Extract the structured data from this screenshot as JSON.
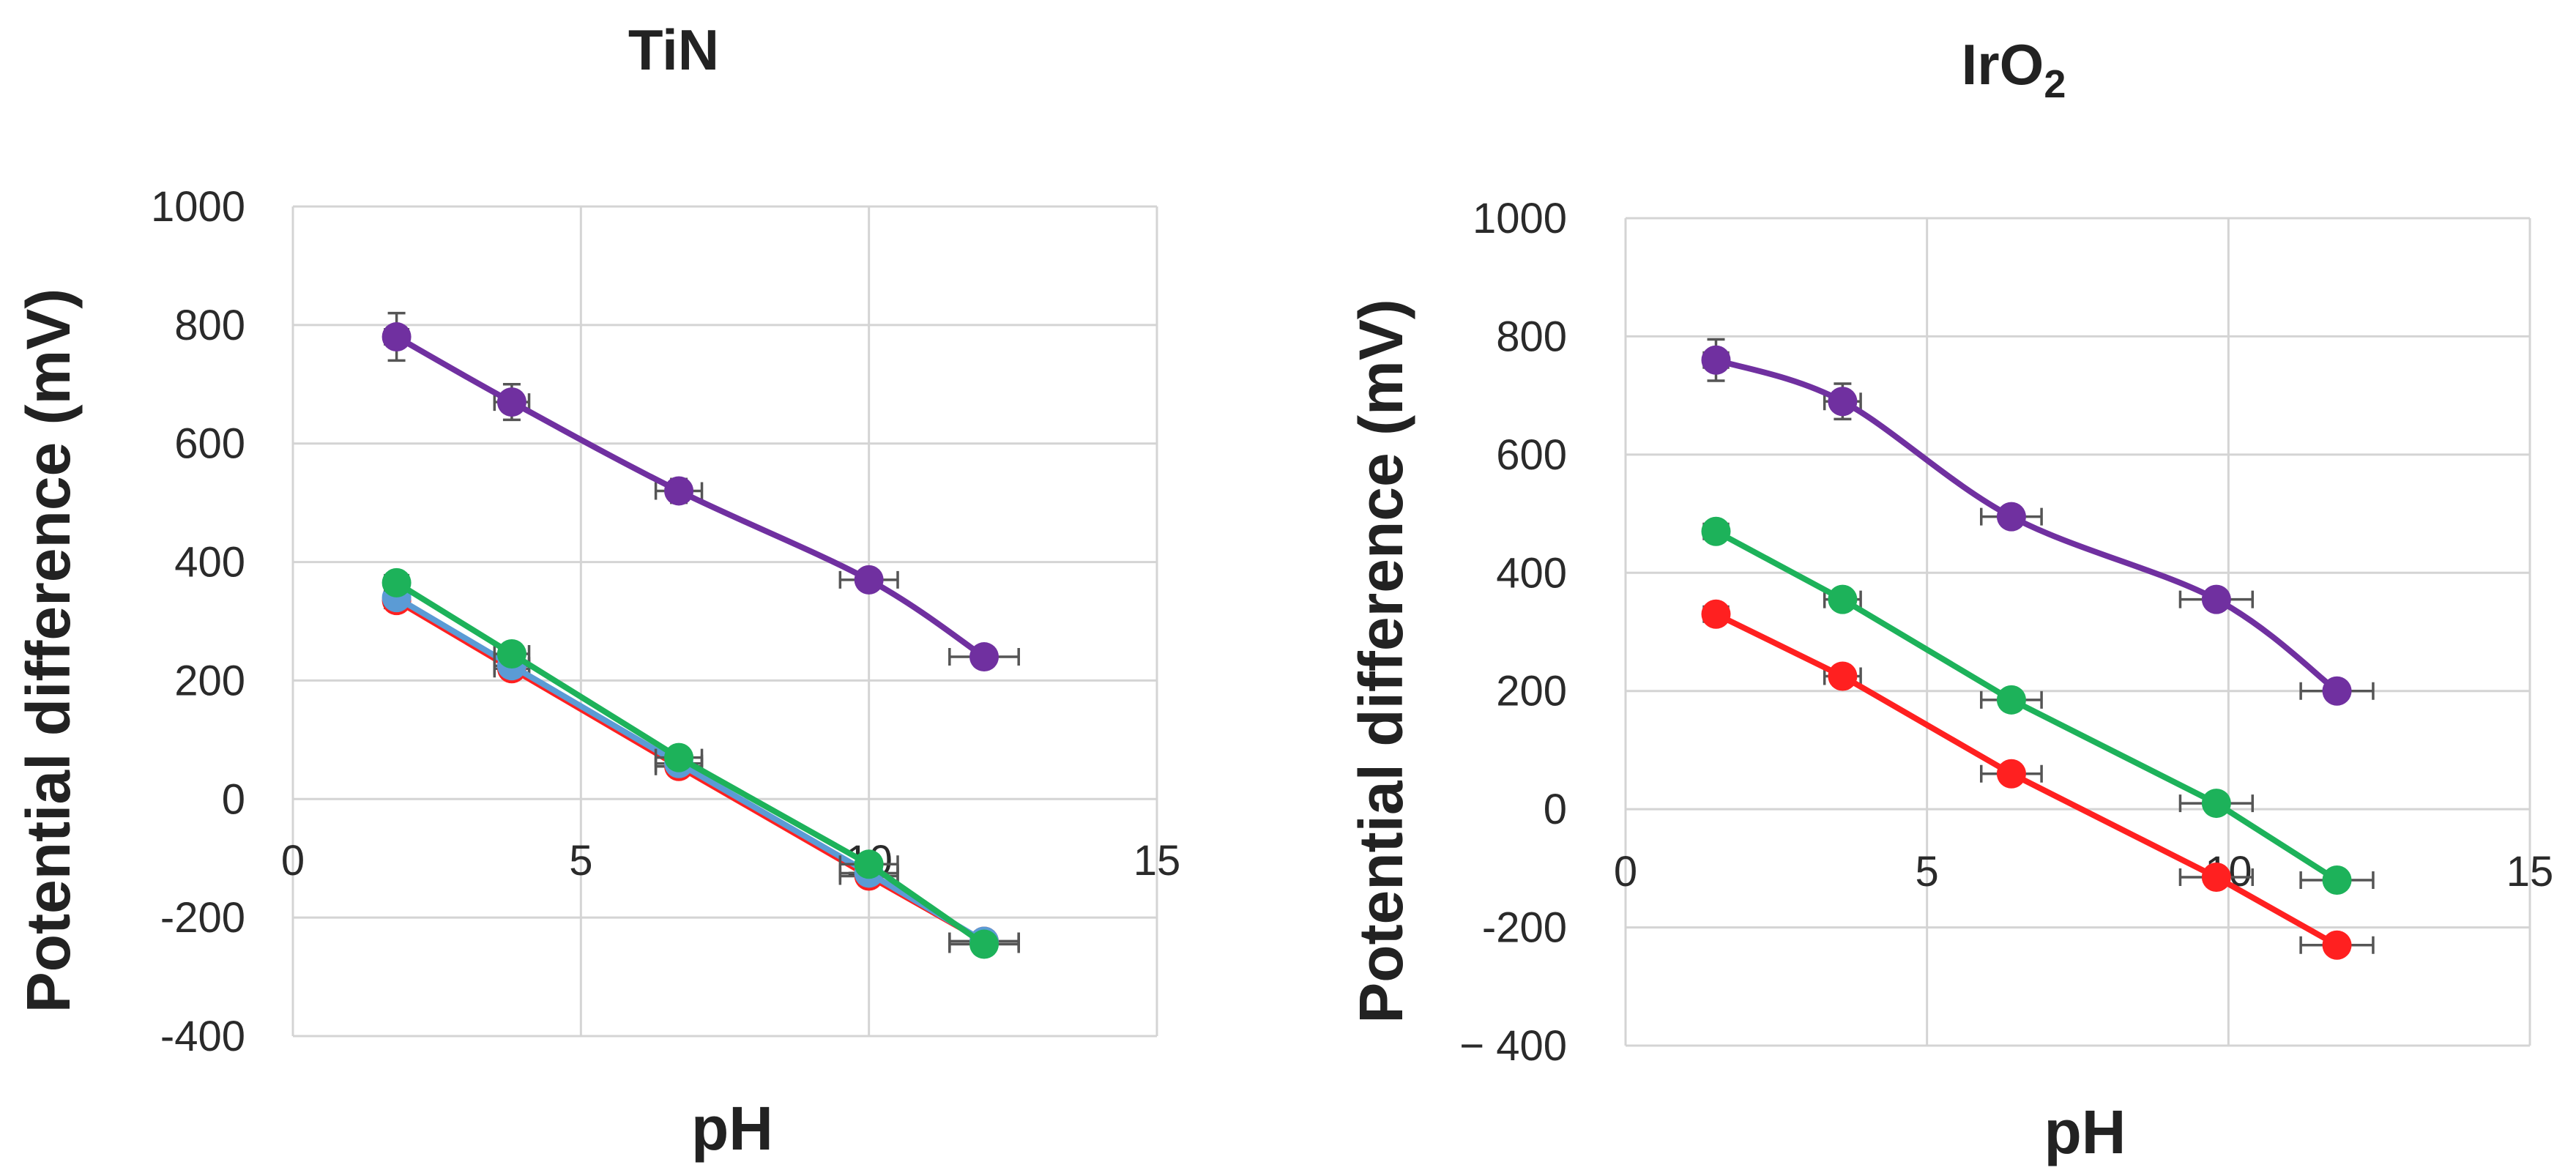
{
  "chart_data": [
    {
      "type": "line",
      "title": "TiN",
      "title_sub": "",
      "xlabel": "pH",
      "ylabel": "Potential difference (mV)",
      "xlim": [
        0,
        15
      ],
      "ylim": [
        -400,
        1000
      ],
      "xticks": [
        "0",
        "5",
        "10",
        "15"
      ],
      "yticks": [
        "1000",
        "800",
        "600",
        "400",
        "200",
        "0",
        "-200",
        "-400"
      ],
      "x": [
        1.8,
        3.8,
        6.7,
        10.0,
        12.0
      ],
      "x_error": [
        0.2,
        0.3,
        0.4,
        0.5,
        0.6
      ],
      "series": [
        {
          "name": "purple",
          "color": "#7030a0",
          "values": [
            780,
            670,
            520,
            370,
            240
          ],
          "y_error": [
            40,
            30,
            20,
            15,
            10
          ],
          "smooth": true
        },
        {
          "name": "red",
          "color": "#ff2020",
          "values": [
            335,
            220,
            55,
            -130,
            -240
          ],
          "y_error": [
            10,
            10,
            10,
            10,
            10
          ],
          "smooth": false
        },
        {
          "name": "blue",
          "color": "#5b9bd5",
          "values": [
            340,
            225,
            60,
            -125,
            -240
          ],
          "y_error": [
            10,
            10,
            10,
            10,
            10
          ],
          "smooth": false
        },
        {
          "name": "green",
          "color": "#1db25a",
          "values": [
            365,
            245,
            70,
            -110,
            -245
          ],
          "y_error": [
            10,
            10,
            10,
            10,
            10
          ],
          "smooth": false
        }
      ]
    },
    {
      "type": "line",
      "title": "IrO",
      "title_sub": "2",
      "xlabel": "pH",
      "ylabel": "Potential difference (mV)",
      "xlim": [
        0,
        15
      ],
      "ylim": [
        -400,
        1000
      ],
      "xticks": [
        "0",
        "5",
        "10",
        "15"
      ],
      "yticks": [
        "1000",
        "800",
        "600",
        "400",
        "200",
        "0",
        "-200",
        "− 400"
      ],
      "x": [
        1.5,
        3.6,
        6.4,
        9.8,
        11.8
      ],
      "x_error": [
        0.2,
        0.3,
        0.5,
        0.6,
        0.6
      ],
      "series": [
        {
          "name": "purple",
          "color": "#7030a0",
          "values": [
            760,
            690,
            495,
            355,
            200
          ],
          "y_error": [
            35,
            30,
            15,
            12,
            10
          ],
          "smooth": true
        },
        {
          "name": "green",
          "color": "#1db25a",
          "values": [
            470,
            355,
            185,
            10,
            -120
          ],
          "y_error": [
            10,
            10,
            10,
            10,
            10
          ],
          "smooth": false
        },
        {
          "name": "red",
          "color": "#ff2020",
          "values": [
            330,
            225,
            60,
            -115,
            -230
          ],
          "y_error": [
            10,
            10,
            10,
            10,
            10
          ],
          "smooth": false
        }
      ]
    }
  ]
}
